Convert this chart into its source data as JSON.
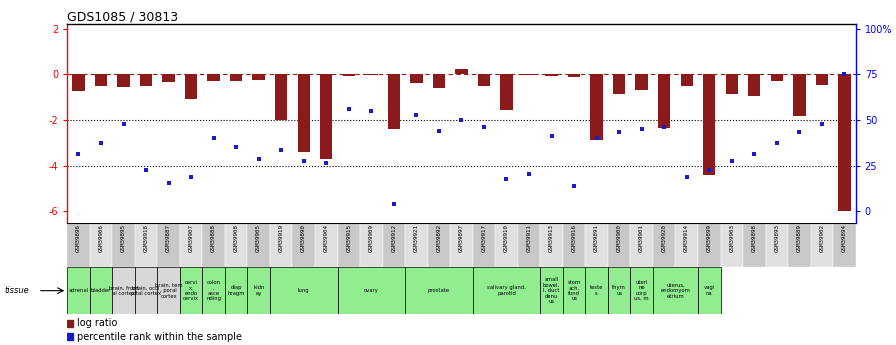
{
  "title": "GDS1085 / 30813",
  "samples": [
    "GSM39896",
    "GSM39906",
    "GSM39895",
    "GSM39918",
    "GSM39887",
    "GSM39907",
    "GSM39888",
    "GSM39908",
    "GSM39905",
    "GSM39919",
    "GSM39890",
    "GSM39904",
    "GSM39915",
    "GSM39909",
    "GSM39912",
    "GSM39921",
    "GSM39892",
    "GSM39897",
    "GSM39917",
    "GSM39910",
    "GSM39911",
    "GSM39913",
    "GSM39916",
    "GSM39891",
    "GSM39900",
    "GSM39901",
    "GSM39920",
    "GSM39914",
    "GSM39899",
    "GSM39903",
    "GSM39898",
    "GSM39893",
    "GSM39889",
    "GSM39902",
    "GSM39894"
  ],
  "log_ratio": [
    -0.75,
    -0.5,
    -0.55,
    -0.5,
    -0.35,
    -1.1,
    -0.3,
    -0.3,
    -0.25,
    -2.0,
    -3.4,
    -3.7,
    -0.08,
    -0.04,
    -2.4,
    -0.4,
    -0.6,
    0.25,
    -0.5,
    -1.55,
    -0.04,
    -0.07,
    -0.12,
    -2.9,
    -0.85,
    -0.7,
    -2.35,
    -0.5,
    -4.4,
    -0.85,
    -0.95,
    -0.3,
    -1.85,
    -0.45,
    -6.0
  ],
  "pct_rank_left": [
    -3.5,
    -3.0,
    -2.2,
    -4.2,
    -4.75,
    -4.5,
    -2.8,
    -3.2,
    -3.7,
    -3.3,
    -3.8,
    -3.9,
    -1.5,
    -1.6,
    -5.7,
    -1.8,
    -2.5,
    -2.0,
    -2.3,
    -4.6,
    -4.35,
    -2.7,
    -4.9,
    -2.8,
    -2.55,
    -2.4,
    -2.3,
    -4.5,
    -4.2,
    -3.8,
    -3.5,
    -3.0,
    -2.55,
    -2.2,
    0.0
  ],
  "tissue_groups": [
    {
      "start": 0,
      "end": 1,
      "label": "adrenal",
      "color": "#90ee90"
    },
    {
      "start": 1,
      "end": 2,
      "label": "bladder",
      "color": "#90ee90"
    },
    {
      "start": 2,
      "end": 3,
      "label": "brain, front\nal cortex",
      "color": "#d8d8d8"
    },
    {
      "start": 3,
      "end": 4,
      "label": "brain, occi\npital cortex",
      "color": "#d8d8d8"
    },
    {
      "start": 4,
      "end": 5,
      "label": "brain, tem\n, poral\ncortex",
      "color": "#d8d8d8"
    },
    {
      "start": 5,
      "end": 6,
      "label": "cervi\nx,\nendo\ncervix",
      "color": "#90ee90"
    },
    {
      "start": 6,
      "end": 7,
      "label": "colon\n,\nasce\nnding",
      "color": "#90ee90"
    },
    {
      "start": 7,
      "end": 8,
      "label": "diap\nhragm",
      "color": "#90ee90"
    },
    {
      "start": 8,
      "end": 9,
      "label": "kidn\ney",
      "color": "#90ee90"
    },
    {
      "start": 9,
      "end": 12,
      "label": "lung",
      "color": "#90ee90"
    },
    {
      "start": 12,
      "end": 15,
      "label": "ovary",
      "color": "#90ee90"
    },
    {
      "start": 15,
      "end": 18,
      "label": "prostate",
      "color": "#90ee90"
    },
    {
      "start": 18,
      "end": 21,
      "label": "salivary gland,\nparotid",
      "color": "#90ee90"
    },
    {
      "start": 21,
      "end": 22,
      "label": "small\nbowel,\nI, duct\ndenu\nus",
      "color": "#90ee90"
    },
    {
      "start": 22,
      "end": 23,
      "label": "stom\nach,\nfund\nus",
      "color": "#90ee90"
    },
    {
      "start": 23,
      "end": 24,
      "label": "teste\ns",
      "color": "#90ee90"
    },
    {
      "start": 24,
      "end": 25,
      "label": "thym\nus",
      "color": "#90ee90"
    },
    {
      "start": 25,
      "end": 26,
      "label": "uteri\nne\ncorp\nus, m",
      "color": "#90ee90"
    },
    {
      "start": 26,
      "end": 28,
      "label": "uterus,\nendomyom\netrium",
      "color": "#90ee90"
    },
    {
      "start": 28,
      "end": 29,
      "label": "vagi\nna",
      "color": "#90ee90"
    }
  ],
  "ylim": [
    -6.5,
    2.2
  ],
  "bar_color": "#8b1a1a",
  "point_color": "#1a1acd",
  "dotted_lines": [
    -2.0,
    -4.0
  ],
  "sample_bg_even": "#c8c8c8",
  "sample_bg_odd": "#e0e0e0",
  "title_fontsize": 9,
  "bar_width": 0.55
}
